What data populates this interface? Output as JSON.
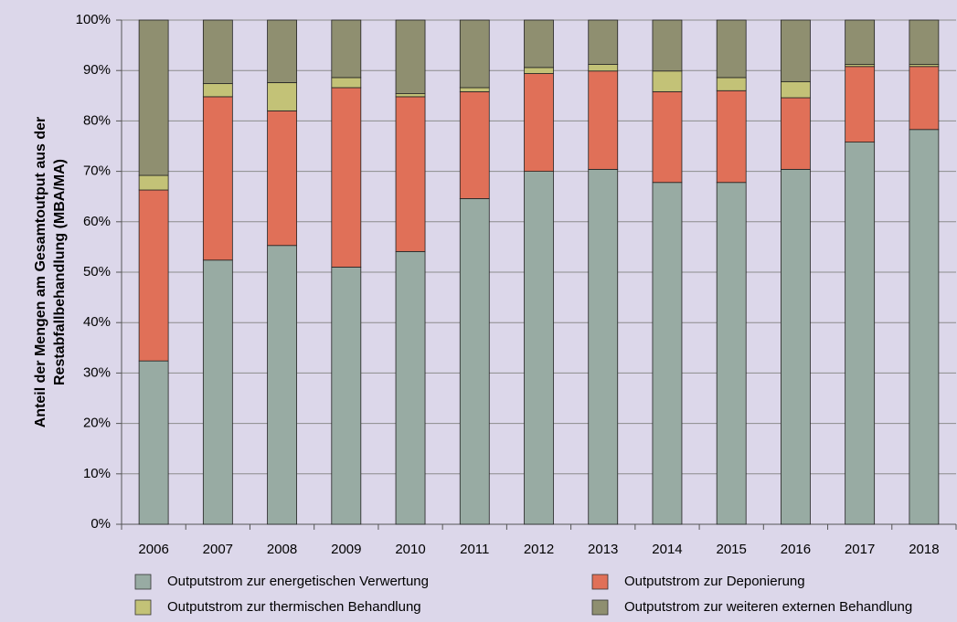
{
  "chart_data": {
    "type": "stacked_bar",
    "ylabel": [
      "Anteil der Mengen am Gesamtoutput aus der",
      "Restabfallbehandlung (MBA/MA)"
    ],
    "categories": [
      "2006",
      "2007",
      "2008",
      "2009",
      "2010",
      "2011",
      "2012",
      "2013",
      "2014",
      "2015",
      "2016",
      "2017",
      "2018"
    ],
    "series": [
      {
        "name": "Outputstrom zur energetischen Verwertung",
        "color": "#98aba3",
        "values": [
          32.4,
          52.4,
          55.3,
          51.0,
          54.1,
          64.6,
          70.0,
          70.4,
          67.8,
          67.8,
          70.4,
          75.8,
          78.3
        ]
      },
      {
        "name": "Outputstrom zur Deponierung",
        "color": "#e07058",
        "values": [
          33.9,
          32.4,
          26.7,
          35.6,
          30.7,
          21.2,
          19.4,
          19.5,
          18.0,
          18.2,
          14.2,
          15.0,
          12.5
        ]
      },
      {
        "name": "Outputstrom zur thermischen Behandlung",
        "color": "#c3c277",
        "values": [
          2.9,
          2.6,
          5.6,
          2.0,
          0.6,
          0.8,
          1.2,
          1.3,
          4.1,
          2.6,
          3.2,
          0.4,
          0.4
        ]
      },
      {
        "name": "Outputstrom zur weiteren externen Behandlung",
        "color": "#8f8f70",
        "values": [
          30.8,
          12.6,
          12.4,
          11.4,
          14.6,
          13.4,
          9.4,
          8.8,
          10.1,
          11.4,
          12.2,
          8.8,
          8.8
        ]
      }
    ],
    "ylim": [
      0,
      100
    ],
    "yticks": [
      {
        "value": 0,
        "label": "0%"
      },
      {
        "value": 10,
        "label": "10%"
      },
      {
        "value": 20,
        "label": "20%"
      },
      {
        "value": 30,
        "label": "30%"
      },
      {
        "value": 40,
        "label": "40%"
      },
      {
        "value": 50,
        "label": "50%"
      },
      {
        "value": 60,
        "label": "60%"
      },
      {
        "value": 70,
        "label": "70%"
      },
      {
        "value": 80,
        "label": "80%"
      },
      {
        "value": 90,
        "label": "90%"
      },
      {
        "value": 100,
        "label": "100%"
      }
    ],
    "grid": true
  }
}
